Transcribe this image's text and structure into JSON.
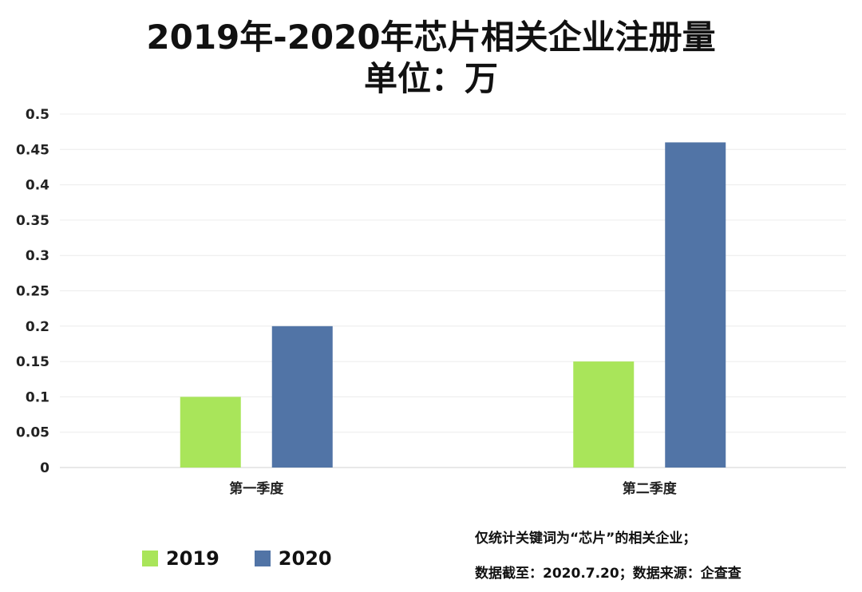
{
  "chart_data": {
    "type": "bar",
    "title": "2019年-2020年芯片相关企业注册量",
    "subtitle": "单位：万",
    "categories": [
      "第一季度",
      "第二季度"
    ],
    "series": [
      {
        "name": "2019",
        "values": [
          0.1,
          0.15
        ],
        "color": "#a9e55a"
      },
      {
        "name": "2020",
        "values": [
          0.2,
          0.46
        ],
        "color": "#5174a6"
      }
    ],
    "ylim": [
      0,
      0.5
    ],
    "yticks": [
      "0",
      "0.05",
      "0.1",
      "0.15",
      "0.2",
      "0.25",
      "0.3",
      "0.35",
      "0.4",
      "0.45",
      "0.5"
    ],
    "grid": true,
    "legend": "bottom-left"
  },
  "notes": [
    "仅统计关键词为“芯片”的相关企业；",
    "数据截至：2020.7.20；数据来源：企查查"
  ]
}
